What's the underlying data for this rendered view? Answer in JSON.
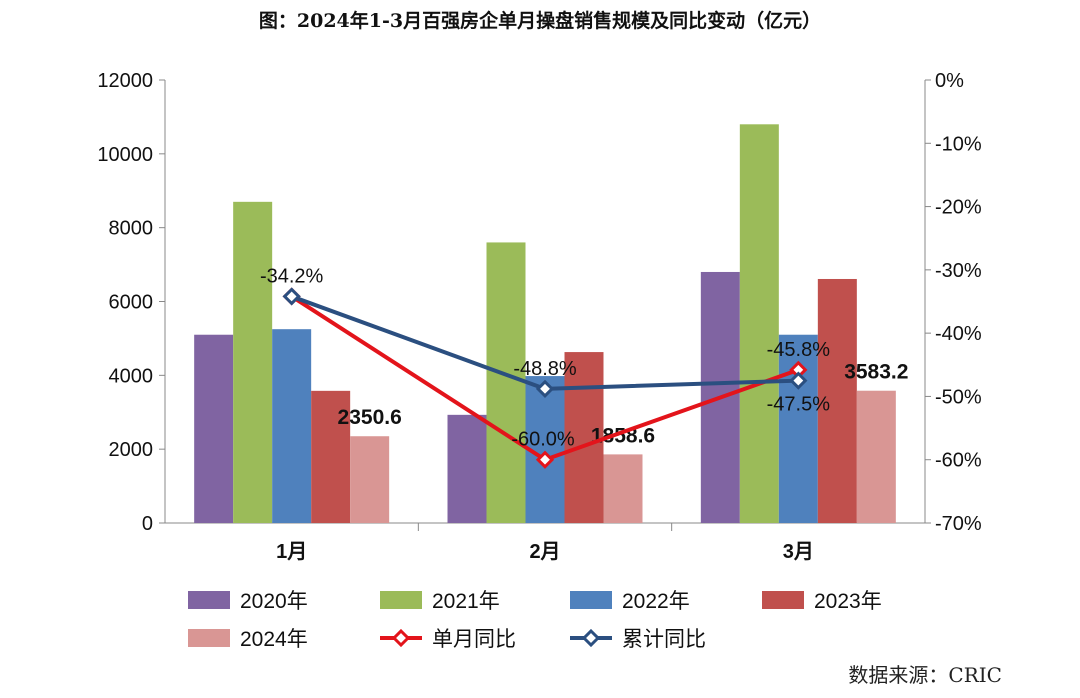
{
  "chart_data": {
    "type": "bar",
    "title": "图：2024年1-3月百强房企单月操盘销售规模及同比变动（亿元）",
    "categories": [
      "1月",
      "2月",
      "3月"
    ],
    "ylim": [
      0,
      12000
    ],
    "y_ticks": [
      "0",
      "2000",
      "4000",
      "6000",
      "8000",
      "10000",
      "12000"
    ],
    "y2lim": [
      -70,
      0
    ],
    "y2_ticks": [
      "-70%",
      "-60%",
      "-50%",
      "-40%",
      "-30%",
      "-20%",
      "-10%",
      "0%"
    ],
    "series": [
      {
        "name": "2020年",
        "kind": "bar",
        "color": "#8064a2",
        "values": [
          5100,
          2930,
          6800
        ]
      },
      {
        "name": "2021年",
        "kind": "bar",
        "color": "#9bbb59",
        "values": [
          8700,
          7600,
          10800
        ]
      },
      {
        "name": "2022年",
        "kind": "bar",
        "color": "#4f81bd",
        "values": [
          5250,
          3980,
          5100
        ]
      },
      {
        "name": "2023年",
        "kind": "bar",
        "color": "#c0504d",
        "values": [
          3580,
          4630,
          6610
        ]
      },
      {
        "name": "2024年",
        "kind": "bar",
        "color": "#d99694",
        "values": [
          2350.6,
          1858.6,
          3583.2
        ],
        "labels": [
          "2350.6",
          "1858.6",
          "3583.2"
        ]
      },
      {
        "name": "单月同比",
        "kind": "line",
        "axis": "right",
        "color": "#e3141b",
        "values": [
          -34.2,
          -60.0,
          -45.8
        ],
        "labels": [
          "",
          "-60.0%",
          "-45.8%"
        ]
      },
      {
        "name": "累计同比",
        "kind": "line",
        "axis": "right",
        "color": "#2b4f80",
        "values": [
          -34.2,
          -48.8,
          -47.5
        ],
        "labels": [
          "-34.2%",
          "-48.8%",
          "-47.5%"
        ]
      }
    ],
    "legend": "bottom",
    "grid": false
  },
  "source": "数据来源：CRIC"
}
